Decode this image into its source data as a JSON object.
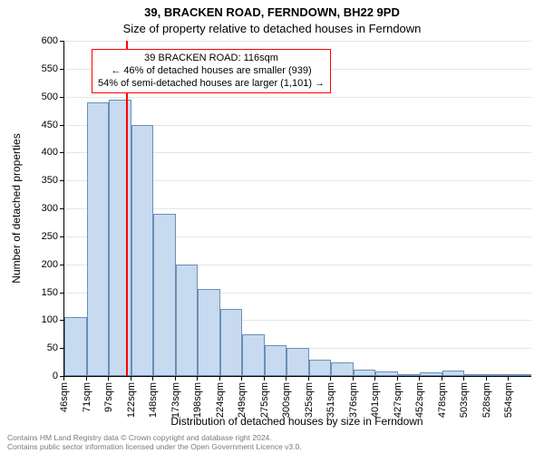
{
  "title_line1": "39, BRACKEN ROAD, FERNDOWN, BH22 9PD",
  "title_line2": "Size of property relative to detached houses in Ferndown",
  "ylabel": "Number of detached properties",
  "xlabel": "Distribution of detached houses by size in Ferndown",
  "footer_line1": "Contains HM Land Registry data © Crown copyright and database right 2024.",
  "footer_line2": "Contains public sector information licensed under the Open Government Licence v3.0.",
  "chart": {
    "type": "bar-histogram",
    "ylim": [
      0,
      600
    ],
    "ytick_step": 50,
    "grid_color": "#e6e6e6",
    "background_color": "#ffffff",
    "axis_color": "#000000",
    "bar_fill": "#c7daef",
    "bar_border": "#6a8fb5",
    "bar_border_width": 1,
    "marker_color": "#ff0000",
    "marker_value": 116,
    "x_start": 46,
    "x_bin_width": 25.4,
    "categories": [
      "46sqm",
      "71sqm",
      "97sqm",
      "122sqm",
      "148sqm",
      "173sqm",
      "198sqm",
      "224sqm",
      "249sqm",
      "275sqm",
      "300sqm",
      "325sqm",
      "351sqm",
      "376sqm",
      "401sqm",
      "427sqm",
      "452sqm",
      "478sqm",
      "503sqm",
      "528sqm",
      "554sqm"
    ],
    "values": [
      105,
      490,
      495,
      450,
      290,
      200,
      155,
      120,
      75,
      55,
      50,
      30,
      25,
      12,
      8,
      4,
      6,
      10,
      2,
      2,
      3
    ],
    "label_fontsize": 11,
    "axis_label_fontsize": 12,
    "title_fontsize": 13
  },
  "annotation": {
    "line1": "39 BRACKEN ROAD: 116sqm",
    "line2": "← 46% of detached houses are smaller (939)",
    "line3": "54% of semi-detached houses are larger (1,101) →",
    "border_color": "#ff0000",
    "background_color": "#ffffff"
  }
}
